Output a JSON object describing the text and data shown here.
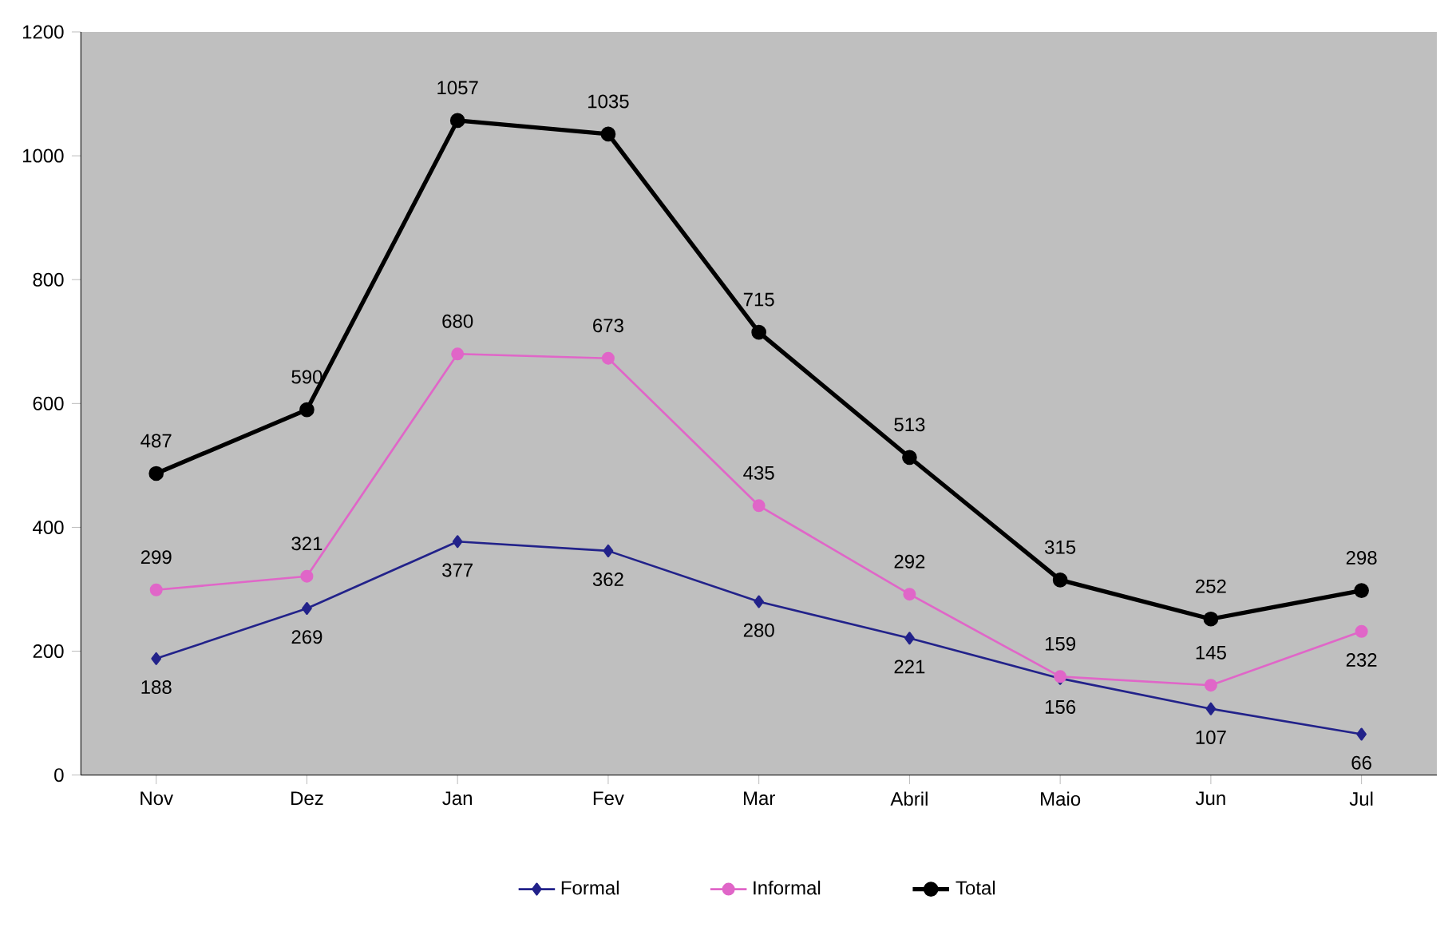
{
  "chart_data": {
    "type": "line",
    "categories": [
      "Nov",
      "Dez",
      "Jan",
      "Fev",
      "Mar",
      "Abril",
      "Maio",
      "Jun",
      "Jul"
    ],
    "series": [
      {
        "name": "Formal",
        "color": "#22228a",
        "marker": "diamond",
        "values": [
          188,
          269,
          377,
          362,
          280,
          221,
          156,
          107,
          66
        ]
      },
      {
        "name": "Informal",
        "color": "#e066c8",
        "marker": "circle",
        "values": [
          299,
          321,
          680,
          673,
          435,
          292,
          159,
          145,
          232
        ]
      },
      {
        "name": "Total",
        "color": "#000000",
        "marker": "circle",
        "values": [
          487,
          590,
          1057,
          1035,
          715,
          513,
          315,
          252,
          298
        ]
      }
    ],
    "ylim": [
      0,
      1200
    ],
    "yticks": [
      0,
      200,
      400,
      600,
      800,
      1000,
      1200
    ],
    "data_labels": true,
    "legend": "bottom",
    "line_style": "solid"
  }
}
